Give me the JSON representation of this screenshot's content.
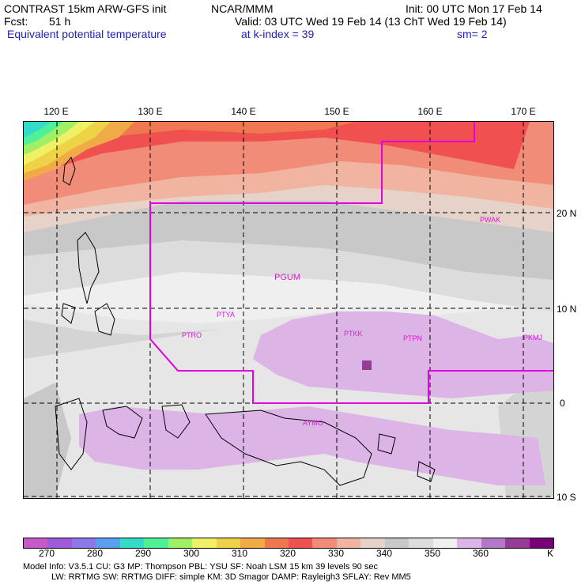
{
  "header": {
    "line1_left": "CONTRAST 15km ARW-GFS init",
    "line1_mid": "NCAR/MMM",
    "line1_right": "Init: 00 UTC Mon 17 Feb 14",
    "fcst_label": "Fcst:",
    "fcst_value": "51 h",
    "valid": "Valid: 03 UTC Wed 19 Feb 14 (13 ChT Wed 19 Feb 14)",
    "field": "Equivalent potential temperature",
    "level": "at k-index =  39",
    "smooth": "sm= 2"
  },
  "axes": {
    "lon_labels": [
      "120 E",
      "130 E",
      "140 E",
      "150 E",
      "160 E",
      "170 E"
    ],
    "lat_labels": [
      "20 N",
      "10 N",
      "0",
      "10 S"
    ]
  },
  "stations": [
    "PWAK",
    "PGUM",
    "PTYA",
    "PTRO",
    "PTKK",
    "PTPN",
    "PKMJ",
    "AYMO"
  ],
  "colorbar": {
    "unit": "K",
    "ticks": [
      "270",
      "280",
      "290",
      "300",
      "310",
      "320",
      "330",
      "340",
      "350",
      "360"
    ],
    "colors": [
      "#c85ac8",
      "#a05adc",
      "#8c78e6",
      "#5aa0f0",
      "#32dcc8",
      "#50f096",
      "#a0f064",
      "#f0f064",
      "#f0d246",
      "#f0aa46",
      "#f07850",
      "#f05050",
      "#f08c78",
      "#f0b4a0",
      "#e6d2c8",
      "#c8c8c8",
      "#dcdcdc",
      "#f0f0f0",
      "#dcb4e6",
      "#b478c8",
      "#963c96",
      "#780078"
    ]
  },
  "footer": {
    "line1": "Model Info: V3.5.1    CU: G3      MP: Thompson    PBL: YSU       SF: Noah LSM     15 km    39 levels    90 sec",
    "line2": "LW: RRTMG    SW: RRTMG   DIFF: simple KM: 3D Smagor DAMP: Rayleigh3   SFLAY: Rev MM5"
  }
}
